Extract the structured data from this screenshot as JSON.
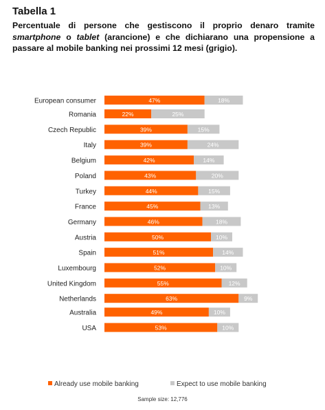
{
  "header": {
    "table_label": "Tabella 1",
    "caption_part1": "Percentuale di persone che gestiscono il proprio denaro tramite ",
    "caption_smartphone": "smartphone",
    "caption_part2": " o ",
    "caption_tablet": "tablet",
    "caption_part3": " (arancione) e che dichiarano una propensione a passare al mobile banking nei prossimi 12 mesi (grigio)."
  },
  "colors": {
    "already": "#ff6200",
    "expect": "#c8c8c8",
    "label_text": "#222222"
  },
  "chart_data": {
    "type": "bar",
    "orientation": "horizontal",
    "stacked": true,
    "categories": [
      "European consumer",
      "Romania",
      "Czech Republic",
      "Italy",
      "Belgium",
      "Poland",
      "Turkey",
      "France",
      "Germany",
      "Austria",
      "Spain",
      "Luxembourg",
      "United Kingdom",
      "Netherlands",
      "Australia",
      "USA"
    ],
    "groups": [
      [
        0
      ],
      [
        1,
        2,
        3,
        4,
        5,
        6,
        7,
        8,
        9,
        10,
        11,
        12,
        13
      ],
      [
        14,
        15
      ]
    ],
    "series": [
      {
        "name": "Already use mobile banking",
        "values": [
          47,
          22,
          39,
          39,
          42,
          43,
          44,
          45,
          46,
          50,
          51,
          52,
          55,
          63,
          49,
          53
        ],
        "labels": [
          "47%",
          "22%",
          "39%",
          "39%",
          "42%",
          "43%",
          "44%",
          "45%",
          "46%",
          "50%",
          "51%",
          "52%",
          "55%",
          "63%",
          "49%",
          "53%"
        ]
      },
      {
        "name": "Expect to use mobile banking",
        "values": [
          18,
          25,
          15,
          24,
          14,
          20,
          15,
          13,
          18,
          10,
          14,
          10,
          12,
          9,
          10,
          10
        ],
        "labels": [
          "18%",
          "25%",
          "15%",
          "24%",
          "14%",
          "20%",
          "15%",
          "13%",
          "18%",
          "10%",
          "14%",
          "10%",
          "12%",
          "9%",
          "10%",
          "10%"
        ]
      }
    ],
    "xlim": [
      0,
      100
    ],
    "legend_position": "bottom",
    "note": "Sample size: 12,776"
  }
}
